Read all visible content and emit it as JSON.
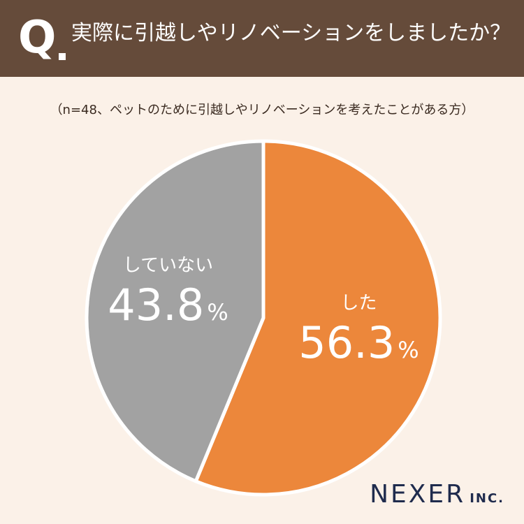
{
  "header": {
    "q_mark": "Q",
    "question": "実際に引越しやリノベーションをしましたか？"
  },
  "note": "（n=48、ペットのために引越しやリノベーションを考えたことがある方）",
  "chart_data": {
    "type": "pie",
    "title": "",
    "slices": [
      {
        "label": "した",
        "value": 56.3,
        "value_label": "56.3",
        "unit": "%",
        "color": "#ec873b"
      },
      {
        "label": "していない",
        "value": 43.8,
        "value_label": "43.8",
        "unit": "%",
        "color": "#a2a2a2"
      }
    ],
    "start": "12 o'clock",
    "direction": "clockwise"
  },
  "logo": {
    "main": "NEXER",
    "sub": "INC."
  }
}
